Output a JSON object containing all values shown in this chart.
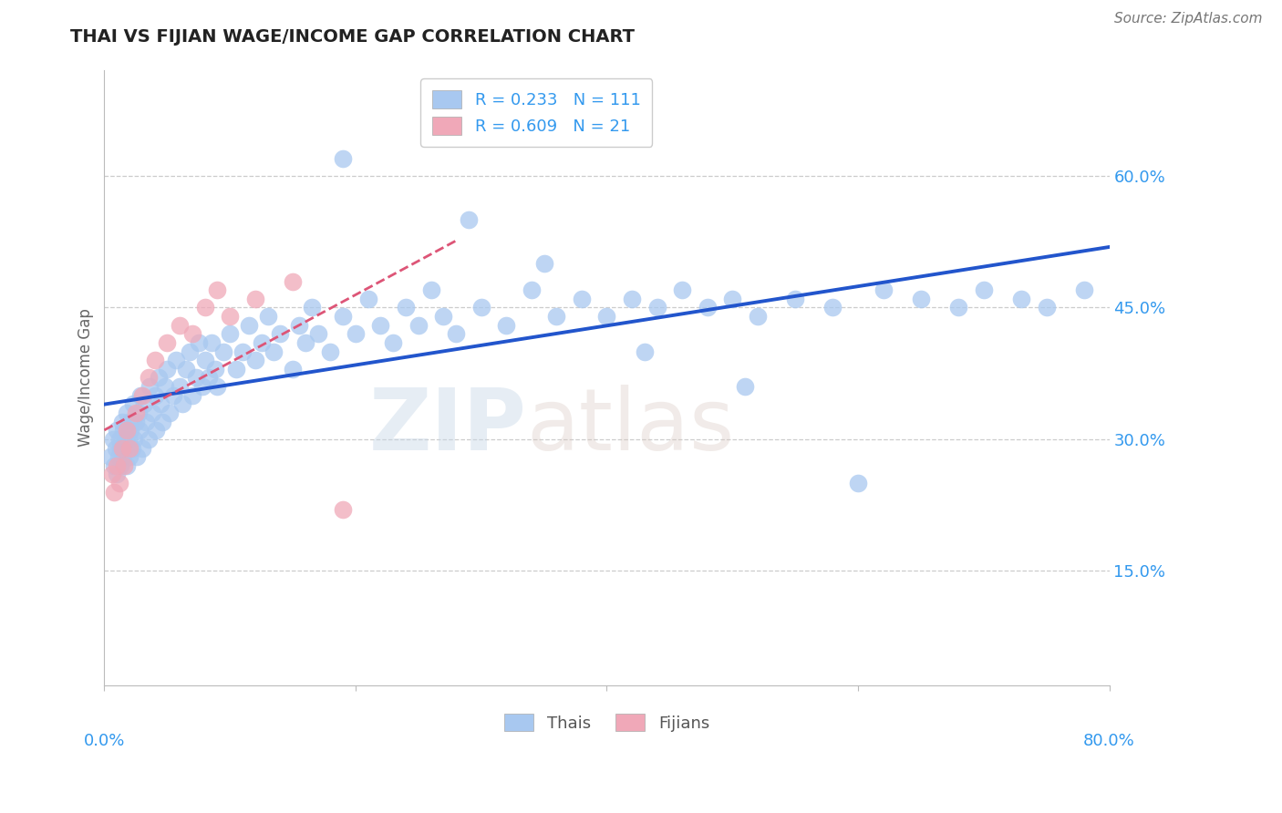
{
  "title": "THAI VS FIJIAN WAGE/INCOME GAP CORRELATION CHART",
  "source": "Source: ZipAtlas.com",
  "ylabel": "Wage/Income Gap",
  "ytick_vals": [
    0.6,
    0.45,
    0.3,
    0.15
  ],
  "ytick_labels": [
    "60.0%",
    "45.0%",
    "30.0%",
    "15.0%"
  ],
  "xlim": [
    0.0,
    0.8
  ],
  "ylim": [
    0.02,
    0.72
  ],
  "thai_color": "#a8c8f0",
  "fijian_color": "#f0a8b8",
  "trend_thai_color": "#2255cc",
  "trend_fijian_color": "#dd5577",
  "background_color": "#ffffff",
  "grid_color": "#cccccc",
  "thai_seed": 77,
  "fijian_seed": 13,
  "thai_x": [
    0.005,
    0.007,
    0.008,
    0.009,
    0.01,
    0.01,
    0.011,
    0.012,
    0.013,
    0.013,
    0.014,
    0.015,
    0.015,
    0.016,
    0.017,
    0.018,
    0.018,
    0.019,
    0.02,
    0.02,
    0.021,
    0.022,
    0.023,
    0.024,
    0.025,
    0.026,
    0.027,
    0.028,
    0.029,
    0.03,
    0.032,
    0.033,
    0.035,
    0.036,
    0.038,
    0.04,
    0.041,
    0.043,
    0.045,
    0.046,
    0.048,
    0.05,
    0.052,
    0.055,
    0.057,
    0.06,
    0.062,
    0.065,
    0.068,
    0.07,
    0.073,
    0.075,
    0.078,
    0.08,
    0.083,
    0.085,
    0.088,
    0.09,
    0.095,
    0.1,
    0.105,
    0.11,
    0.115,
    0.12,
    0.125,
    0.13,
    0.135,
    0.14,
    0.15,
    0.155,
    0.16,
    0.165,
    0.17,
    0.18,
    0.19,
    0.2,
    0.21,
    0.22,
    0.23,
    0.24,
    0.25,
    0.26,
    0.27,
    0.28,
    0.3,
    0.32,
    0.34,
    0.36,
    0.38,
    0.4,
    0.42,
    0.44,
    0.46,
    0.48,
    0.5,
    0.52,
    0.55,
    0.58,
    0.62,
    0.65,
    0.68,
    0.7,
    0.73,
    0.75,
    0.78,
    0.19,
    0.29,
    0.35,
    0.43,
    0.51,
    0.6
  ],
  "thai_y": [
    0.28,
    0.3,
    0.27,
    0.29,
    0.31,
    0.26,
    0.28,
    0.3,
    0.27,
    0.29,
    0.32,
    0.28,
    0.31,
    0.29,
    0.3,
    0.33,
    0.27,
    0.3,
    0.28,
    0.32,
    0.31,
    0.29,
    0.34,
    0.3,
    0.32,
    0.28,
    0.33,
    0.31,
    0.35,
    0.29,
    0.34,
    0.32,
    0.3,
    0.36,
    0.33,
    0.35,
    0.31,
    0.37,
    0.34,
    0.32,
    0.36,
    0.38,
    0.33,
    0.35,
    0.39,
    0.36,
    0.34,
    0.38,
    0.4,
    0.35,
    0.37,
    0.41,
    0.36,
    0.39,
    0.37,
    0.41,
    0.38,
    0.36,
    0.4,
    0.42,
    0.38,
    0.4,
    0.43,
    0.39,
    0.41,
    0.44,
    0.4,
    0.42,
    0.38,
    0.43,
    0.41,
    0.45,
    0.42,
    0.4,
    0.44,
    0.42,
    0.46,
    0.43,
    0.41,
    0.45,
    0.43,
    0.47,
    0.44,
    0.42,
    0.45,
    0.43,
    0.47,
    0.44,
    0.46,
    0.44,
    0.46,
    0.45,
    0.47,
    0.45,
    0.46,
    0.44,
    0.46,
    0.45,
    0.47,
    0.46,
    0.45,
    0.47,
    0.46,
    0.45,
    0.47,
    0.62,
    0.55,
    0.5,
    0.4,
    0.36,
    0.25
  ],
  "fijian_x": [
    0.006,
    0.008,
    0.01,
    0.012,
    0.014,
    0.016,
    0.018,
    0.02,
    0.025,
    0.03,
    0.035,
    0.04,
    0.05,
    0.06,
    0.07,
    0.08,
    0.09,
    0.1,
    0.12,
    0.15,
    0.19
  ],
  "fijian_y": [
    0.26,
    0.24,
    0.27,
    0.25,
    0.29,
    0.27,
    0.31,
    0.29,
    0.33,
    0.35,
    0.37,
    0.39,
    0.41,
    0.43,
    0.42,
    0.45,
    0.47,
    0.44,
    0.46,
    0.48,
    0.22
  ]
}
